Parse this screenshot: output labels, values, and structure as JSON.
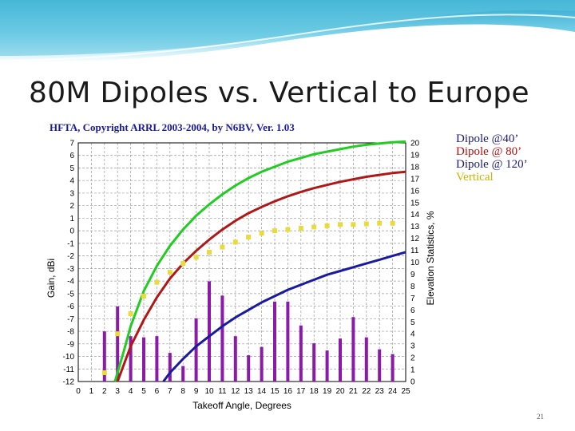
{
  "slide": {
    "title": "80M Dipoles vs. Vertical to Europe",
    "page_number": "21"
  },
  "colors": {
    "banner_light": "#c6ecf6",
    "banner_mid": "#5ec4e0",
    "title_text": "#1a1a1a"
  },
  "legend": [
    {
      "label": "Dipole @40’",
      "color": "#1a1a7a"
    },
    {
      "label": "Dipole @ 80’",
      "color": "#b01010"
    },
    {
      "label": "Dipole @ 120’",
      "color": "#1a1a7a"
    },
    {
      "label": "Vertical",
      "color": "#c8b400"
    }
  ],
  "chart_data": {
    "type": "line",
    "title": "HFTA, Copyright ARRL 2003-2004, by N6BV, Ver. 1.03",
    "xlabel": "Takeoff Angle, Degrees",
    "ylabel": "Gain, dBi",
    "y2label": "Elevation Statistics, %",
    "xlim": [
      0,
      25
    ],
    "ylim": [
      -12,
      7
    ],
    "y2lim": [
      0,
      20
    ],
    "x_ticks": [
      0,
      1,
      2,
      3,
      4,
      5,
      6,
      7,
      8,
      9,
      10,
      11,
      12,
      13,
      14,
      15,
      16,
      17,
      18,
      19,
      20,
      21,
      22,
      23,
      24,
      25
    ],
    "y_ticks": [
      7,
      6,
      5,
      4,
      3,
      2,
      1,
      0,
      -1,
      -2,
      -3,
      -4,
      -5,
      -6,
      -7,
      -8,
      -9,
      -10,
      -11,
      -12
    ],
    "y2_ticks": [
      20,
      19,
      18,
      17,
      16,
      15,
      14,
      13,
      12,
      11,
      10,
      9,
      8,
      7,
      6,
      5,
      4,
      3,
      2,
      1,
      0
    ],
    "grid": true,
    "series": [
      {
        "color": "#22cc22",
        "style": "line",
        "x": [
          2.8,
          3.5,
          4,
          5,
          6,
          7,
          8,
          9,
          10,
          11,
          12,
          13,
          14,
          15,
          16,
          17,
          18,
          19,
          20,
          21,
          22,
          23,
          24,
          25
        ],
        "y": [
          -12,
          -9.5,
          -7.6,
          -4.8,
          -2.8,
          -1.2,
          0.1,
          1.2,
          2.1,
          2.9,
          3.6,
          4.2,
          4.7,
          5.1,
          5.5,
          5.8,
          6.1,
          6.3,
          6.5,
          6.7,
          6.85,
          6.95,
          7.05,
          7.1
        ]
      },
      {
        "color": "#b01818",
        "style": "line",
        "x": [
          3,
          4,
          5,
          6,
          7,
          8,
          9,
          10,
          11,
          12,
          13,
          14,
          15,
          16,
          17,
          18,
          19,
          20,
          21,
          22,
          23,
          24,
          25
        ],
        "y": [
          -12,
          -9.2,
          -7.1,
          -5.3,
          -3.8,
          -2.6,
          -1.6,
          -0.7,
          0.1,
          0.8,
          1.4,
          1.9,
          2.35,
          2.75,
          3.1,
          3.4,
          3.65,
          3.9,
          4.1,
          4.3,
          4.45,
          4.6,
          4.7
        ]
      },
      {
        "color": "#1a1aa0",
        "style": "line",
        "x": [
          6.5,
          7,
          8,
          9,
          10,
          11,
          12,
          13,
          14,
          15,
          16,
          17,
          18,
          19,
          20,
          21,
          22,
          23,
          24,
          25
        ],
        "y": [
          -12,
          -11.3,
          -10.2,
          -9.2,
          -8.4,
          -7.6,
          -6.9,
          -6.3,
          -5.7,
          -5.2,
          -4.7,
          -4.3,
          -3.9,
          -3.5,
          -3.2,
          -2.9,
          -2.6,
          -2.3,
          -2.0,
          -1.7
        ]
      },
      {
        "color": "#e8dc3c",
        "style": "markers",
        "x": [
          2,
          3,
          4,
          5,
          6,
          7,
          8,
          9,
          10,
          11,
          12,
          13,
          14,
          15,
          16,
          17,
          18,
          19,
          20,
          21,
          22,
          23,
          24
        ],
        "y": [
          -11.3,
          -8.2,
          -6.6,
          -5.2,
          -4.1,
          -3.3,
          -2.6,
          -2.1,
          -1.7,
          -1.3,
          -0.9,
          -0.5,
          -0.2,
          0.0,
          0.1,
          0.2,
          0.3,
          0.4,
          0.5,
          0.5,
          0.55,
          0.6,
          0.6
        ]
      }
    ],
    "bars": {
      "color": "#8a1aa8",
      "axis": "y2",
      "x": [
        2,
        3,
        4,
        5,
        6,
        7,
        8,
        9,
        10,
        11,
        12,
        13,
        14,
        15,
        16,
        17,
        18,
        19,
        20,
        21,
        22,
        23,
        24
      ],
      "values": [
        4.2,
        6.3,
        3.8,
        3.7,
        3.8,
        2.4,
        1.3,
        5.3,
        8.4,
        7.2,
        3.8,
        2.2,
        2.9,
        6.7,
        6.7,
        4.7,
        3.2,
        2.6,
        3.6,
        5.4,
        3.7,
        2.7,
        2.3
      ]
    }
  }
}
